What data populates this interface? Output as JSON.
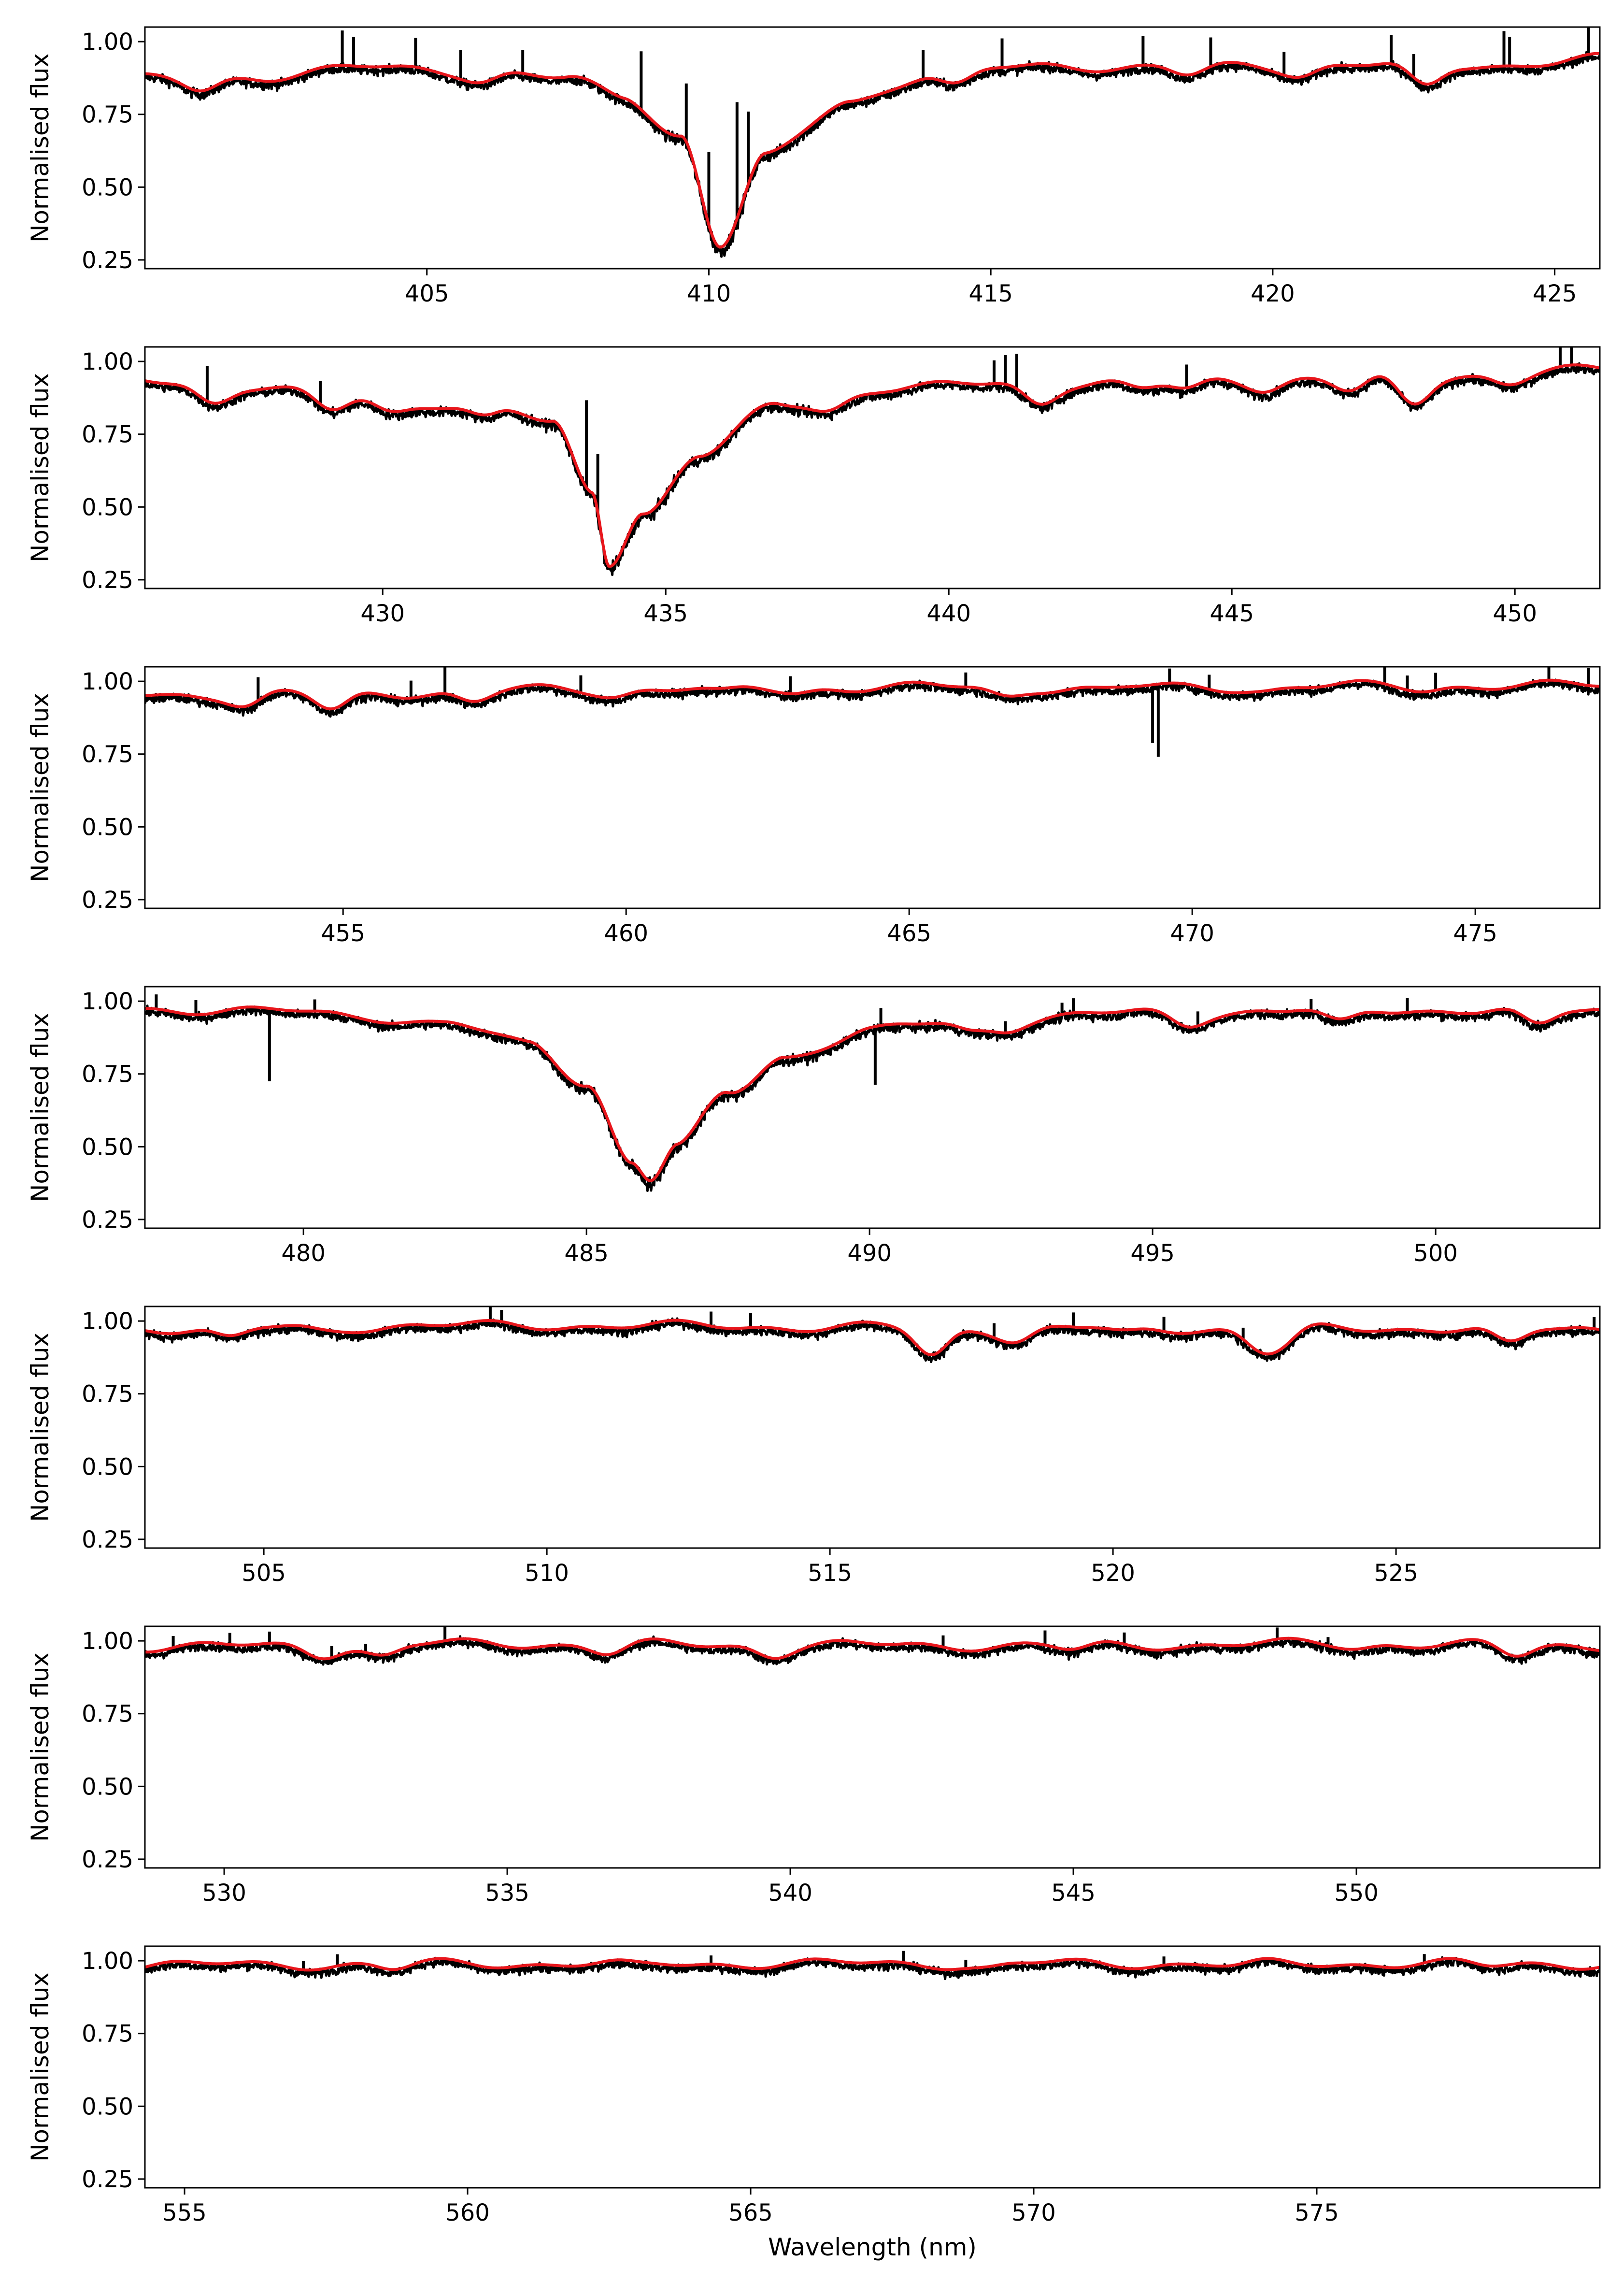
{
  "chart_data": {
    "type": "line",
    "ylabel": "Normalised flux",
    "xlabel": "Wavelength (nm)",
    "series_colors": {
      "observed": "#000000",
      "model": "#e8161c"
    },
    "y_range": [
      0.22,
      1.05
    ],
    "y_ticks": [
      0.25,
      0.5,
      0.75,
      1.0
    ],
    "y_tick_labels": [
      "0.25",
      "0.50",
      "0.75",
      "1.00"
    ],
    "panels": [
      {
        "x_range": [
          400.0,
          425.8
        ],
        "x_ticks": [
          405,
          410,
          415,
          420,
          425
        ],
        "x_tick_labels": [
          "405",
          "410",
          "415",
          "420",
          "425"
        ],
        "continuum": [
          [
            400.0,
            0.87
          ],
          [
            402.0,
            0.88
          ],
          [
            404.0,
            0.91
          ],
          [
            406.0,
            0.9
          ],
          [
            407.5,
            0.87
          ],
          [
            408.5,
            0.81
          ],
          [
            409.5,
            0.68
          ],
          [
            410.2,
            0.3
          ],
          [
            411.0,
            0.6
          ],
          [
            412.5,
            0.8
          ],
          [
            414.0,
            0.89
          ],
          [
            416.0,
            0.92
          ],
          [
            418.0,
            0.91
          ],
          [
            420.0,
            0.92
          ],
          [
            422.0,
            0.92
          ],
          [
            424.0,
            0.92
          ],
          [
            425.8,
            0.94
          ]
        ],
        "absorption": [
          [
            401.0,
            0.04
          ],
          [
            406.0,
            0.03
          ],
          [
            414.4,
            0.05
          ],
          [
            418.5,
            0.03
          ],
          [
            420.5,
            0.03
          ],
          [
            422.7,
            0.08
          ]
        ],
        "spikes": [
          [
            403.5,
            0.12
          ],
          [
            403.7,
            0.1
          ],
          [
            404.8,
            0.1
          ],
          [
            405.6,
            0.1
          ],
          [
            406.7,
            0.08
          ],
          [
            408.8,
            0.2
          ],
          [
            409.6,
            0.2
          ],
          [
            410.0,
            0.25
          ],
          [
            410.5,
            0.4
          ],
          [
            410.7,
            0.25
          ],
          [
            413.8,
            0.1
          ],
          [
            415.2,
            0.1
          ],
          [
            417.7,
            0.1
          ],
          [
            418.9,
            0.1
          ],
          [
            420.2,
            0.08
          ],
          [
            422.1,
            0.1
          ],
          [
            422.5,
            0.08
          ],
          [
            424.1,
            0.12
          ],
          [
            424.2,
            0.1
          ],
          [
            425.6,
            0.1
          ]
        ]
      },
      {
        "x_range": [
          425.8,
          451.5
        ],
        "x_ticks": [
          430,
          435,
          440,
          445,
          450
        ],
        "x_tick_labels": [
          "430",
          "435",
          "440",
          "445",
          "450"
        ],
        "continuum": [
          [
            425.8,
            0.93
          ],
          [
            427.5,
            0.92
          ],
          [
            429.0,
            0.89
          ],
          [
            430.5,
            0.86
          ],
          [
            432.0,
            0.85
          ],
          [
            433.0,
            0.78
          ],
          [
            433.7,
            0.55
          ],
          [
            434.0,
            0.31
          ],
          [
            434.6,
            0.5
          ],
          [
            435.6,
            0.68
          ],
          [
            437.0,
            0.85
          ],
          [
            439.0,
            0.91
          ],
          [
            442.0,
            0.93
          ],
          [
            445.0,
            0.94
          ],
          [
            448.0,
            0.95
          ],
          [
            451.5,
            0.97
          ]
        ],
        "absorption": [
          [
            427.0,
            0.06
          ],
          [
            429.1,
            0.06
          ],
          [
            430.1,
            0.04
          ],
          [
            431.8,
            0.04
          ],
          [
            434.8,
            0.02
          ],
          [
            437.9,
            0.04
          ],
          [
            441.6,
            0.07
          ],
          [
            443.4,
            0.03
          ],
          [
            444.2,
            0.04
          ],
          [
            445.6,
            0.03
          ],
          [
            447.1,
            0.05
          ],
          [
            448.2,
            0.1
          ],
          [
            449.9,
            0.03
          ]
        ],
        "spikes": [
          [
            426.9,
            0.12
          ],
          [
            428.9,
            0.08
          ],
          [
            433.6,
            0.3
          ],
          [
            433.8,
            0.2
          ],
          [
            440.8,
            0.08
          ],
          [
            441.0,
            0.1
          ],
          [
            441.2,
            0.12
          ],
          [
            444.2,
            0.08
          ],
          [
            450.8,
            0.08
          ],
          [
            451.0,
            0.06
          ]
        ]
      },
      {
        "x_range": [
          451.5,
          477.2
        ],
        "x_ticks": [
          455,
          460,
          465,
          470,
          475
        ],
        "x_tick_labels": [
          "455",
          "460",
          "465",
          "470",
          "475"
        ],
        "continuum": [
          [
            451.5,
            0.955
          ],
          [
            455.0,
            0.96
          ],
          [
            460.0,
            0.975
          ],
          [
            465.0,
            0.98
          ],
          [
            470.0,
            0.98
          ],
          [
            475.0,
            0.985
          ],
          [
            477.2,
            0.985
          ]
        ],
        "absorption": [
          [
            453.3,
            0.04
          ],
          [
            454.8,
            0.06
          ],
          [
            457.3,
            0.04
          ],
          [
            459.8,
            0.02
          ],
          [
            461.7,
            0.02
          ],
          [
            463.0,
            0.015
          ],
          [
            466.7,
            0.03
          ],
          [
            468.4,
            0.01
          ],
          [
            471.3,
            0.01
          ],
          [
            474.1,
            0.01
          ]
        ],
        "spikes": [
          [
            453.5,
            0.08
          ],
          [
            456.2,
            0.06
          ],
          [
            456.8,
            0.1
          ],
          [
            459.2,
            0.06
          ],
          [
            462.9,
            0.06
          ],
          [
            466.0,
            0.05
          ],
          [
            469.3,
            -0.2
          ],
          [
            469.4,
            -0.25
          ],
          [
            469.6,
            0.05
          ],
          [
            470.3,
            0.05
          ],
          [
            473.4,
            0.06
          ],
          [
            473.8,
            0.05
          ],
          [
            474.3,
            0.06
          ],
          [
            476.3,
            0.07
          ],
          [
            477.0,
            0.06
          ]
        ]
      },
      {
        "x_range": [
          477.2,
          502.9
        ],
        "x_ticks": [
          480,
          485,
          490,
          495,
          500
        ],
        "x_tick_labels": [
          "480",
          "485",
          "490",
          "495",
          "500"
        ],
        "continuum": [
          [
            477.2,
            0.975
          ],
          [
            479.5,
            0.965
          ],
          [
            481.0,
            0.95
          ],
          [
            482.5,
            0.925
          ],
          [
            484.0,
            0.85
          ],
          [
            485.0,
            0.72
          ],
          [
            485.8,
            0.45
          ],
          [
            486.13,
            0.39
          ],
          [
            486.6,
            0.5
          ],
          [
            487.5,
            0.68
          ],
          [
            488.5,
            0.81
          ],
          [
            490.0,
            0.9
          ],
          [
            492.0,
            0.94
          ],
          [
            495.0,
            0.96
          ],
          [
            498.0,
            0.97
          ],
          [
            502.9,
            0.97
          ]
        ],
        "absorption": [
          [
            491.8,
            0.04
          ],
          [
            492.4,
            0.03
          ],
          [
            495.6,
            0.04
          ],
          [
            498.3,
            0.05
          ],
          [
            501.8,
            0.06
          ]
        ],
        "spikes": [
          [
            477.4,
            0.05
          ],
          [
            478.1,
            0.05
          ],
          [
            479.4,
            -0.25
          ],
          [
            480.2,
            0.04
          ],
          [
            490.1,
            -0.2
          ],
          [
            490.2,
            0.06
          ],
          [
            492.4,
            0.04
          ],
          [
            493.4,
            0.04
          ],
          [
            493.6,
            0.05
          ],
          [
            495.8,
            0.05
          ],
          [
            497.8,
            0.04
          ],
          [
            499.5,
            0.05
          ]
        ]
      },
      {
        "x_range": [
          502.9,
          528.6
        ],
        "x_ticks": [
          505,
          510,
          515,
          520,
          525
        ],
        "x_tick_labels": [
          "505",
          "510",
          "515",
          "520",
          "525"
        ],
        "continuum": [
          [
            502.9,
            0.975
          ],
          [
            510.0,
            0.985
          ],
          [
            515.0,
            0.98
          ],
          [
            520.0,
            0.975
          ],
          [
            528.6,
            0.975
          ]
        ],
        "absorption": [
          [
            504.4,
            0.04
          ],
          [
            506.0,
            0.01
          ],
          [
            516.8,
            0.1
          ],
          [
            518.3,
            0.04
          ],
          [
            520.2,
            0.02
          ],
          [
            522.6,
            0.06
          ],
          [
            523.0,
            0.05
          ],
          [
            527.0,
            0.06
          ]
        ],
        "spikes": [
          [
            509.0,
            0.05
          ],
          [
            509.2,
            0.04
          ],
          [
            512.9,
            0.05
          ],
          [
            513.6,
            0.05
          ],
          [
            517.9,
            0.05
          ],
          [
            519.3,
            0.05
          ],
          [
            520.9,
            0.05
          ],
          [
            522.3,
            0.04
          ],
          [
            528.5,
            0.04
          ]
        ]
      },
      {
        "x_range": [
          528.6,
          554.3
        ],
        "x_ticks": [
          530,
          535,
          540,
          545,
          550
        ],
        "x_tick_labels": [
          "530",
          "535",
          "540",
          "545",
          "550"
        ],
        "continuum": [
          [
            528.6,
            0.98
          ],
          [
            535.0,
            0.99
          ],
          [
            540.0,
            0.985
          ],
          [
            545.0,
            0.985
          ],
          [
            550.0,
            0.99
          ],
          [
            554.3,
            0.985
          ]
        ],
        "absorption": [
          [
            531.7,
            0.03
          ],
          [
            532.8,
            0.04
          ],
          [
            536.8,
            0.03
          ],
          [
            539.7,
            0.03
          ],
          [
            545.0,
            0.02
          ],
          [
            550.0,
            0.01
          ],
          [
            552.8,
            0.04
          ]
        ],
        "spikes": [
          [
            529.1,
            0.04
          ],
          [
            530.1,
            0.04
          ],
          [
            530.8,
            0.04
          ],
          [
            531.9,
            0.04
          ],
          [
            532.5,
            0.03
          ],
          [
            533.9,
            0.05
          ],
          [
            542.7,
            0.04
          ],
          [
            544.5,
            0.05
          ],
          [
            545.9,
            0.04
          ],
          [
            548.6,
            0.04
          ],
          [
            549.5,
            0.03
          ]
        ]
      },
      {
        "x_range": [
          554.3,
          580.0
        ],
        "x_ticks": [
          555,
          560,
          565,
          570,
          575
        ],
        "x_tick_labels": [
          "555",
          "560",
          "565",
          "570",
          "575"
        ],
        "continuum": [
          [
            554.3,
            0.985
          ],
          [
            560.0,
            0.99
          ],
          [
            565.0,
            0.99
          ],
          [
            570.0,
            0.99
          ],
          [
            575.0,
            0.99
          ],
          [
            580.0,
            0.99
          ]
        ],
        "absorption": [
          [
            558.7,
            0.02
          ],
          [
            563.0,
            0.01
          ],
          [
            569.2,
            0.015
          ],
          [
            573.6,
            0.01
          ],
          [
            578.0,
            0.01
          ]
        ],
        "spikes": [
          [
            557.1,
            0.03
          ],
          [
            557.7,
            0.04
          ],
          [
            564.3,
            0.03
          ],
          [
            567.7,
            0.04
          ],
          [
            568.8,
            0.03
          ],
          [
            572.3,
            0.03
          ],
          [
            576.9,
            0.03
          ]
        ]
      }
    ]
  }
}
